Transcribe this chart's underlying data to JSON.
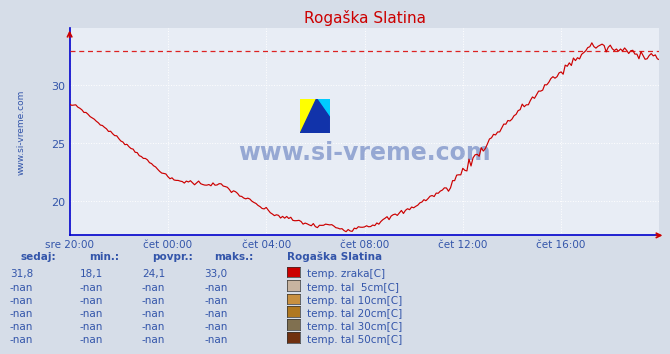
{
  "title": "Rogaška Slatina",
  "bg_color": "#d6dde8",
  "plot_bg_color": "#e8edf5",
  "grid_color": "#ffffff",
  "grid_linestyle": "dotted",
  "title_color": "#cc0000",
  "axis_label_color": "#3355aa",
  "watermark_text": "www.si-vreme.com",
  "watermark_color": "#3355aa",
  "watermark_alpha": 0.45,
  "watermark_fontsize": 18,
  "ylabel_text": "www.si-vreme.com",
  "xlim": [
    0,
    288
  ],
  "ylim": [
    17.0,
    35.0
  ],
  "yticks": [
    20,
    25,
    30
  ],
  "max_line_y": 33.0,
  "line_color": "#cc0000",
  "dashed_line_color": "#dd2222",
  "x_tick_labels": [
    "sre 20:00",
    "čet 00:00",
    "čet 04:00",
    "čet 08:00",
    "čet 12:00",
    "čet 16:00"
  ],
  "x_tick_positions": [
    0,
    48,
    96,
    144,
    192,
    240
  ],
  "table_headers": [
    "sedaj:",
    "min.:",
    "povpr.:",
    "maks.:"
  ],
  "table_row1": [
    "31,8",
    "18,1",
    "24,1",
    "33,0"
  ],
  "legend_station": "Rogaška Slatina",
  "legend_items": [
    {
      "label": "temp. zraka[C]",
      "color": "#cc0000"
    },
    {
      "label": "temp. tal  5cm[C]",
      "color": "#c8b4a0"
    },
    {
      "label": "temp. tal 10cm[C]",
      "color": "#c89040"
    },
    {
      "label": "temp. tal 20cm[C]",
      "color": "#b07820"
    },
    {
      "label": "temp. tal 30cm[C]",
      "color": "#807050"
    },
    {
      "label": "temp. tal 50cm[C]",
      "color": "#703010"
    }
  ],
  "nan_label": "-nan",
  "spine_color": "#0000cc",
  "arrow_color": "#cc0000"
}
